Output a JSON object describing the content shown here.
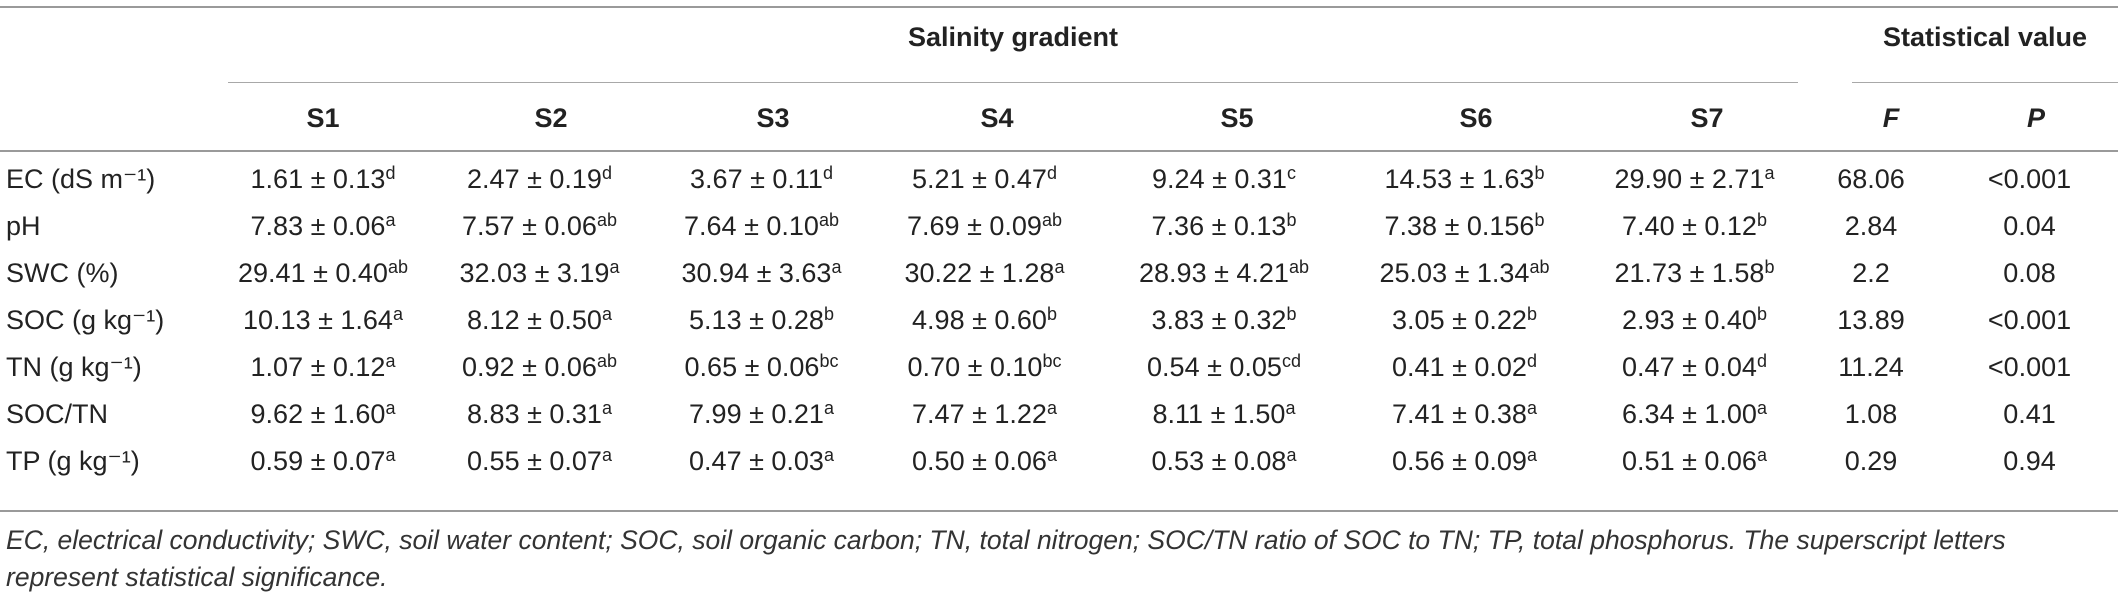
{
  "table": {
    "group_headers": {
      "salinity": "Salinity gradient",
      "statistical": "Statistical value"
    },
    "column_headers": [
      "S1",
      "S2",
      "S3",
      "S4",
      "S5",
      "S6",
      "S7",
      "F",
      "P"
    ],
    "rows": [
      {
        "label": "EC (dS m⁻¹)",
        "cells": [
          {
            "value": "1.61 ± 0.13",
            "sup": "d"
          },
          {
            "value": "2.47 ± 0.19",
            "sup": "d"
          },
          {
            "value": "3.67 ± 0.11",
            "sup": "d"
          },
          {
            "value": "5.21 ± 0.47",
            "sup": "d"
          },
          {
            "value": "9.24 ± 0.31",
            "sup": "c"
          },
          {
            "value": "14.53 ± 1.63",
            "sup": "b"
          },
          {
            "value": "29.90 ± 2.71",
            "sup": "a"
          }
        ],
        "F": "68.06",
        "P": "<0.001"
      },
      {
        "label": "pH",
        "cells": [
          {
            "value": "7.83 ± 0.06",
            "sup": "a"
          },
          {
            "value": "7.57 ± 0.06",
            "sup": "ab"
          },
          {
            "value": "7.64 ± 0.10",
            "sup": "ab"
          },
          {
            "value": "7.69 ± 0.09",
            "sup": "ab"
          },
          {
            "value": "7.36 ± 0.13",
            "sup": "b"
          },
          {
            "value": "7.38 ± 0.156",
            "sup": "b"
          },
          {
            "value": "7.40 ± 0.12",
            "sup": "b"
          }
        ],
        "F": "2.84",
        "P": "0.04"
      },
      {
        "label": "SWC (%)",
        "cells": [
          {
            "value": "29.41 ± 0.40",
            "sup": "ab"
          },
          {
            "value": "32.03 ± 3.19",
            "sup": "a"
          },
          {
            "value": "30.94 ± 3.63",
            "sup": "a"
          },
          {
            "value": "30.22 ± 1.28",
            "sup": "a"
          },
          {
            "value": "28.93 ± 4.21",
            "sup": "ab"
          },
          {
            "value": "25.03 ± 1.34",
            "sup": "ab"
          },
          {
            "value": "21.73 ± 1.58",
            "sup": "b"
          }
        ],
        "F": "2.2",
        "P": "0.08"
      },
      {
        "label": "SOC (g kg⁻¹)",
        "cells": [
          {
            "value": "10.13 ± 1.64",
            "sup": "a"
          },
          {
            "value": "8.12 ± 0.50",
            "sup": "a"
          },
          {
            "value": "5.13 ± 0.28",
            "sup": "b"
          },
          {
            "value": "4.98 ± 0.60",
            "sup": "b"
          },
          {
            "value": "3.83 ± 0.32",
            "sup": "b"
          },
          {
            "value": "3.05 ± 0.22",
            "sup": "b"
          },
          {
            "value": "2.93 ± 0.40",
            "sup": "b"
          }
        ],
        "F": "13.89",
        "P": "<0.001"
      },
      {
        "label": "TN (g kg⁻¹)",
        "cells": [
          {
            "value": "1.07 ± 0.12",
            "sup": "a"
          },
          {
            "value": "0.92 ± 0.06",
            "sup": "ab"
          },
          {
            "value": "0.65 ± 0.06",
            "sup": "bc"
          },
          {
            "value": "0.70 ± 0.10",
            "sup": "bc"
          },
          {
            "value": "0.54 ± 0.05",
            "sup": "cd"
          },
          {
            "value": "0.41 ± 0.02",
            "sup": "d"
          },
          {
            "value": "0.47 ± 0.04",
            "sup": "d"
          }
        ],
        "F": "11.24",
        "P": "<0.001"
      },
      {
        "label": "SOC/TN",
        "cells": [
          {
            "value": "9.62 ± 1.60",
            "sup": "a"
          },
          {
            "value": "8.83 ± 0.31",
            "sup": "a"
          },
          {
            "value": "7.99 ± 0.21",
            "sup": "a"
          },
          {
            "value": "7.47 ± 1.22",
            "sup": "a"
          },
          {
            "value": "8.11 ± 1.50",
            "sup": "a"
          },
          {
            "value": "7.41 ± 0.38",
            "sup": "a"
          },
          {
            "value": "6.34 ± 1.00",
            "sup": "a"
          }
        ],
        "F": "1.08",
        "P": "0.41"
      },
      {
        "label": "TP (g kg⁻¹)",
        "cells": [
          {
            "value": "0.59 ± 0.07",
            "sup": "a"
          },
          {
            "value": "0.55 ± 0.07",
            "sup": "a"
          },
          {
            "value": "0.47 ± 0.03",
            "sup": "a"
          },
          {
            "value": "0.50 ± 0.06",
            "sup": "a"
          },
          {
            "value": "0.53 ± 0.08",
            "sup": "a"
          },
          {
            "value": "0.56 ± 0.09",
            "sup": "a"
          },
          {
            "value": "0.51 ± 0.06",
            "sup": "a"
          }
        ],
        "F": "0.29",
        "P": "0.94"
      }
    ],
    "footnote": "EC, electrical conductivity; SWC, soil water content; SOC, soil organic carbon; TN, total nitrogen; SOC/TN ratio of SOC to TN; TP, total phosphorus. The superscript letters represent statistical significance."
  }
}
